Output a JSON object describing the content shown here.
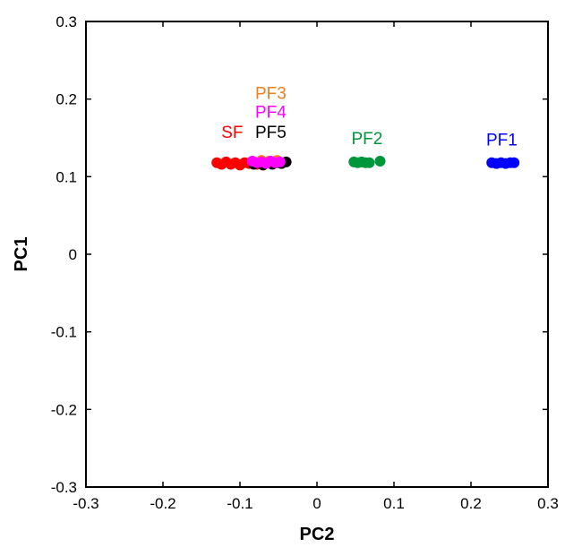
{
  "chart_data": {
    "type": "scatter",
    "xlabel": "PC2",
    "ylabel": "PC1",
    "xlim": [
      -0.3,
      0.3
    ],
    "ylim": [
      -0.3,
      0.3
    ],
    "xticks": [
      "-0.3",
      "-0.2",
      "-0.1",
      "0",
      "0.1",
      "0.2",
      "0.3"
    ],
    "yticks": [
      "0.3",
      "0.2",
      "0.1",
      "0",
      "-0.1",
      "-0.2",
      "-0.3"
    ],
    "grid": false,
    "series": [
      {
        "name": "SF",
        "color": "#ff0000",
        "points": [
          [
            -0.13,
            0.118
          ],
          [
            -0.124,
            0.116
          ],
          [
            -0.118,
            0.119
          ],
          [
            -0.112,
            0.116
          ],
          [
            -0.106,
            0.118
          ],
          [
            -0.1,
            0.115
          ],
          [
            -0.094,
            0.118
          ],
          [
            -0.088,
            0.117
          ],
          [
            -0.082,
            0.119
          ],
          [
            -0.078,
            0.116
          ]
        ]
      },
      {
        "name": "PF5",
        "color": "#000000",
        "points": [
          [
            -0.082,
            0.116
          ],
          [
            -0.076,
            0.118
          ],
          [
            -0.07,
            0.115
          ],
          [
            -0.064,
            0.119
          ],
          [
            -0.058,
            0.116
          ],
          [
            -0.052,
            0.118
          ],
          [
            -0.046,
            0.117
          ],
          [
            -0.04,
            0.119
          ]
        ]
      },
      {
        "name": "PF3",
        "color": "#f07f1d",
        "points": [
          [
            -0.072,
            0.121
          ],
          [
            -0.062,
            0.12
          ],
          [
            -0.052,
            0.121
          ]
        ]
      },
      {
        "name": "PF4",
        "color": "#ff00ff",
        "points": [
          [
            -0.084,
            0.12
          ],
          [
            -0.078,
            0.118
          ],
          [
            -0.072,
            0.119
          ],
          [
            -0.066,
            0.117
          ],
          [
            -0.06,
            0.12
          ],
          [
            -0.054,
            0.118
          ],
          [
            -0.048,
            0.119
          ]
        ]
      },
      {
        "name": "PF2",
        "color": "#00963c",
        "points": [
          [
            0.048,
            0.119
          ],
          [
            0.053,
            0.118
          ],
          [
            0.058,
            0.119
          ],
          [
            0.063,
            0.118
          ],
          [
            0.068,
            0.118
          ],
          [
            0.082,
            0.12
          ]
        ]
      },
      {
        "name": "PF1",
        "color": "#0000ff",
        "points": [
          [
            0.227,
            0.118
          ],
          [
            0.233,
            0.117
          ],
          [
            0.239,
            0.118
          ],
          [
            0.245,
            0.117
          ],
          [
            0.251,
            0.118
          ],
          [
            0.256,
            0.118
          ]
        ]
      }
    ],
    "annotations": [
      {
        "text": "PF3",
        "color": "#f07f1d",
        "x": -0.06,
        "y": 0.2
      },
      {
        "text": "PF4",
        "color": "#ff00ff",
        "x": -0.06,
        "y": 0.176
      },
      {
        "text": "SF",
        "color": "#ff0000",
        "x": -0.11,
        "y": 0.15
      },
      {
        "text": "PF5",
        "color": "#000000",
        "x": -0.06,
        "y": 0.15
      },
      {
        "text": "PF2",
        "color": "#00963c",
        "x": 0.065,
        "y": 0.142
      },
      {
        "text": "PF1",
        "color": "#0000ff",
        "x": 0.24,
        "y": 0.14
      }
    ]
  }
}
